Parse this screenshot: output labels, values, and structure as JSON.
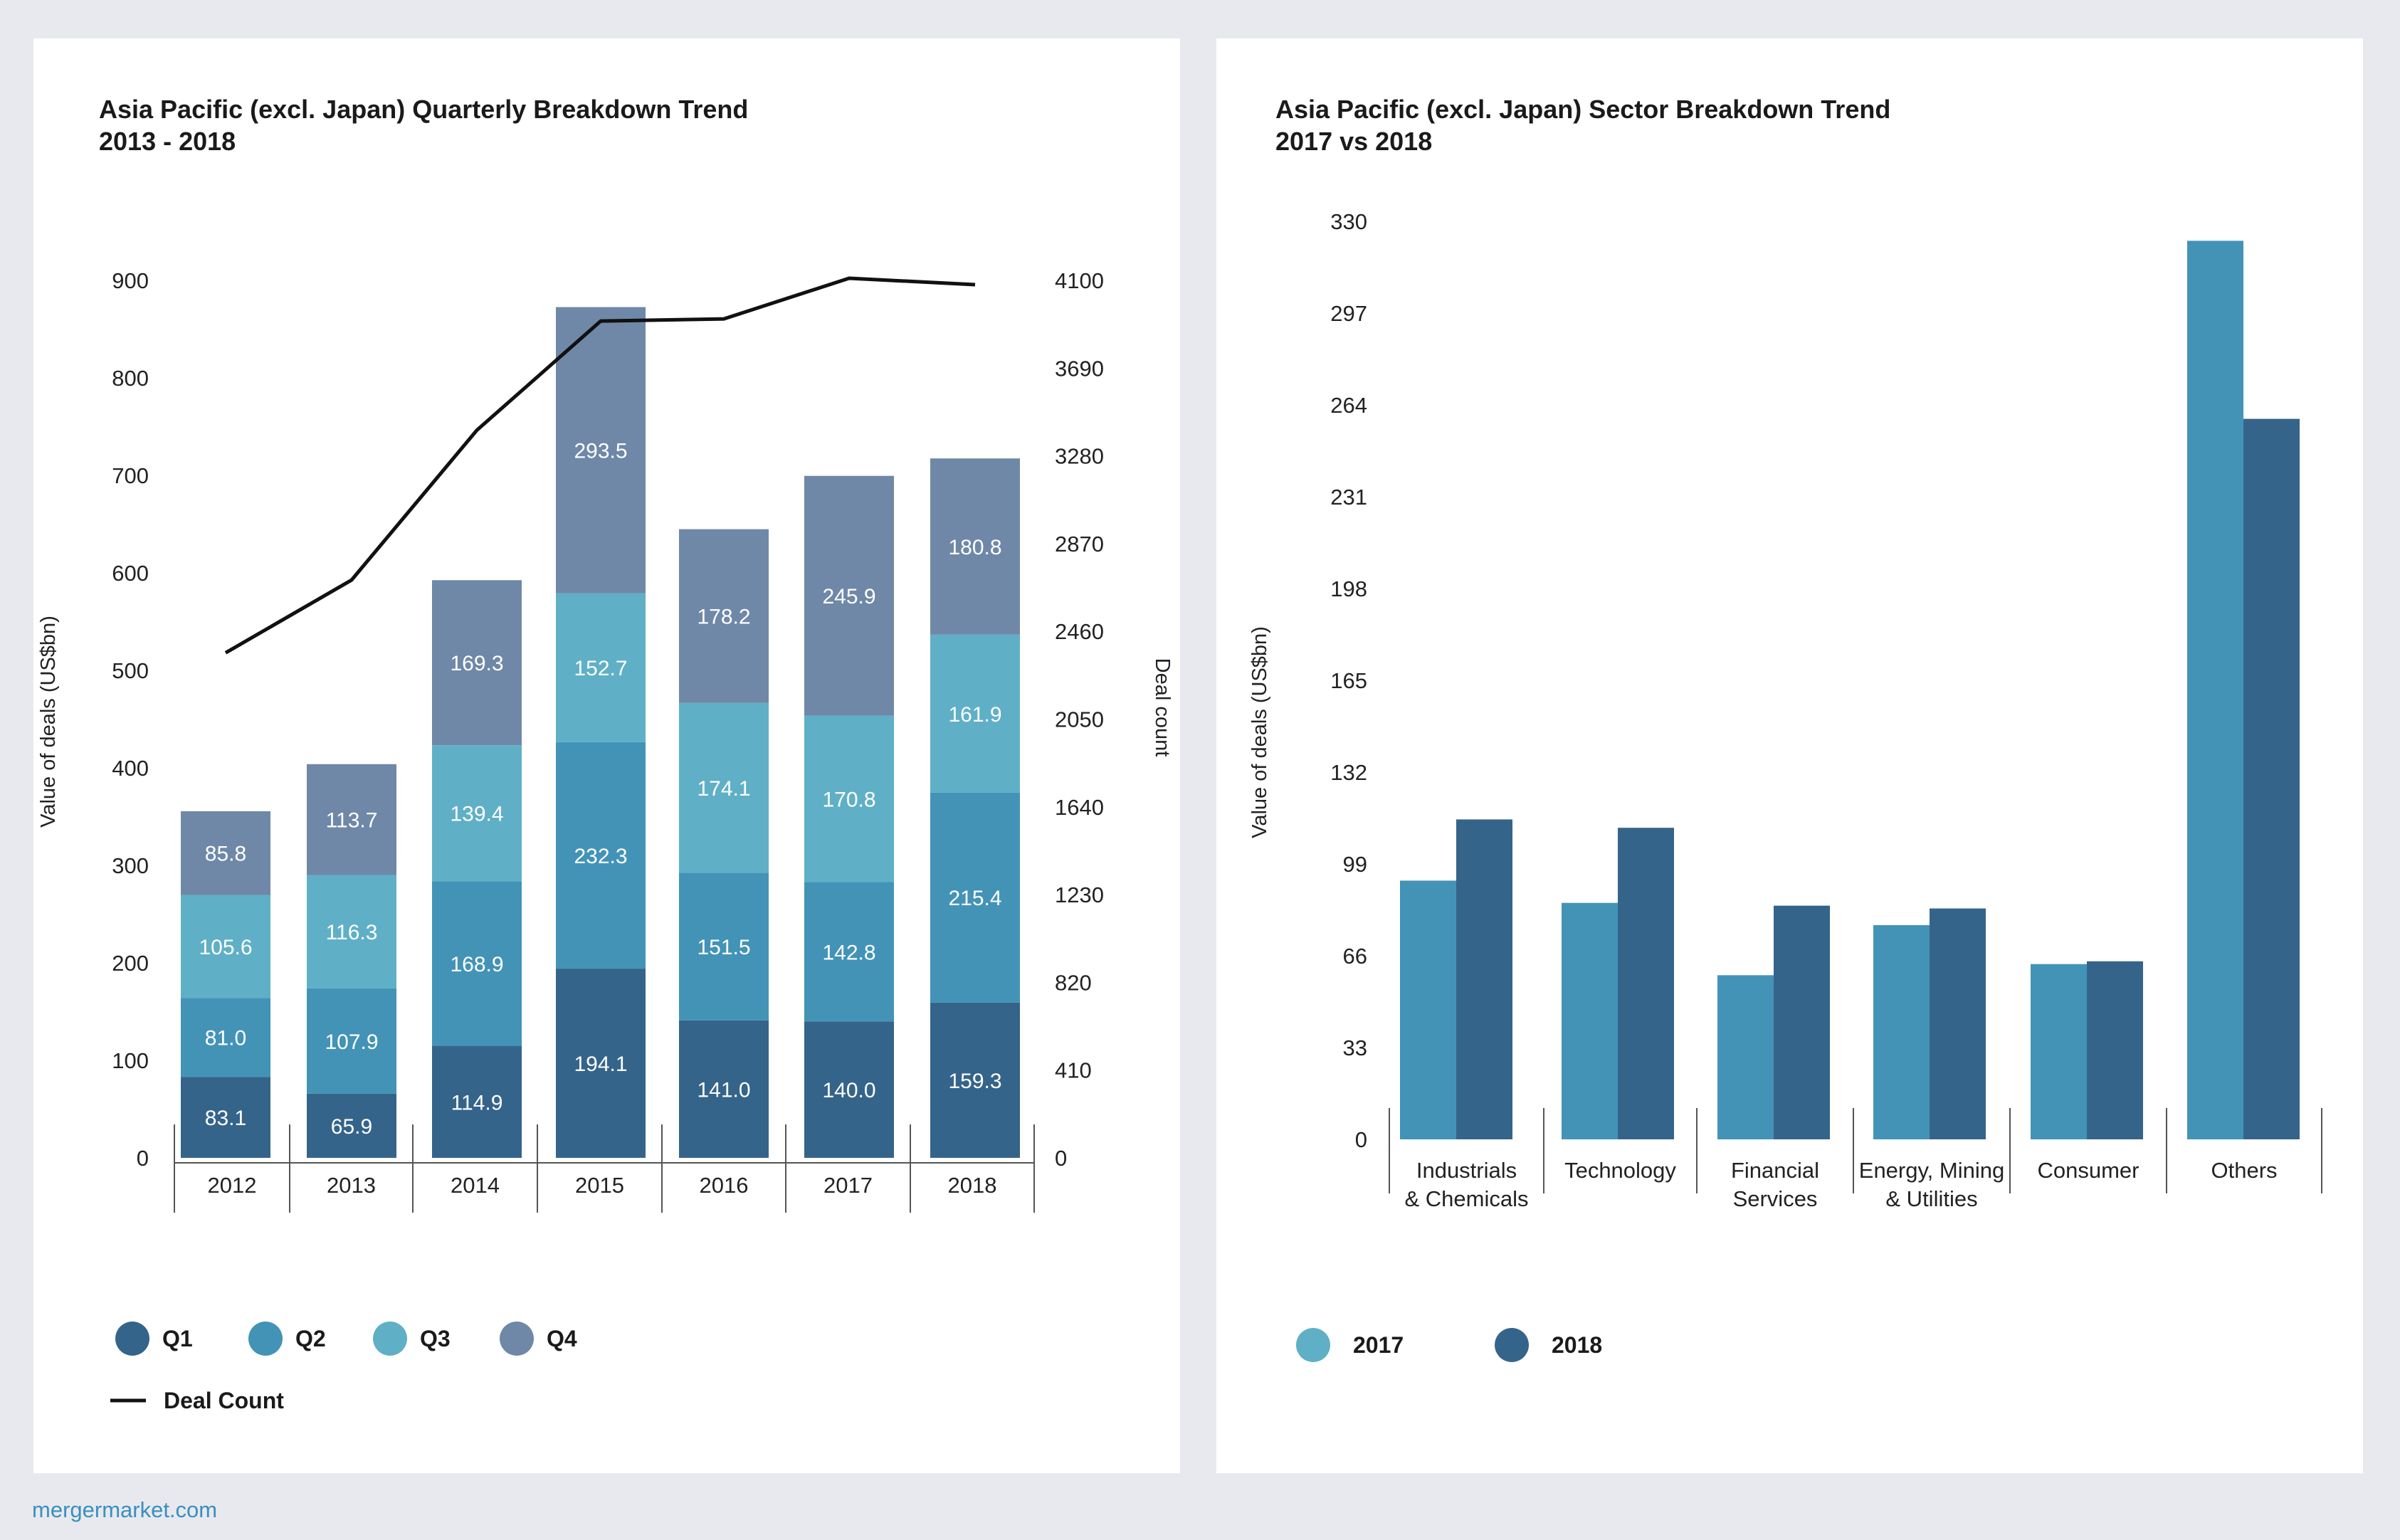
{
  "colors": {
    "q1": "#35648a",
    "q2": "#4393b7",
    "q3": "#5fb0c6",
    "q4": "#6f88a8",
    "deal_count_line": "#111111",
    "y2017": "#4393b7",
    "y2018": "#35648a",
    "legend_2017": "#5fb0c6",
    "legend_2018": "#35648a"
  },
  "footer": {
    "text": "mergermarket.com"
  },
  "chart_data": [
    {
      "type": "bar",
      "stacked": true,
      "title": "Asia Pacific (excl. Japan) Quarterly Breakdown Trend",
      "subtitle": "2013 - 2018",
      "ylabel": "Value of deals (US$bn)",
      "y2label": "Deal count",
      "ylim": [
        0,
        900
      ],
      "yticks": [
        0,
        100,
        200,
        300,
        400,
        500,
        600,
        700,
        800,
        900
      ],
      "y2lim": [
        0,
        4100
      ],
      "y2ticks": [
        0,
        410,
        820,
        1230,
        1640,
        2050,
        2460,
        2870,
        3280,
        3690,
        4100
      ],
      "categories": [
        "2012",
        "2013",
        "2014",
        "2015",
        "2016",
        "2017",
        "2018"
      ],
      "series": [
        {
          "name": "Q1",
          "values": [
            83.1,
            65.9,
            114.9,
            194.1,
            141.0,
            140.0,
            159.3
          ],
          "labels": [
            "83.1",
            "65.9",
            "114.9",
            "194.1",
            "141.0",
            "140.0",
            "159.3"
          ]
        },
        {
          "name": "Q2",
          "values": [
            81.0,
            107.9,
            168.9,
            232.3,
            151.5,
            142.8,
            215.4
          ],
          "labels": [
            "81.0",
            "107.9",
            "168.9",
            "232.3",
            "151.5",
            "142.8",
            "215.4"
          ]
        },
        {
          "name": "Q3",
          "values": [
            105.6,
            116.3,
            139.4,
            152.7,
            174.1,
            170.8,
            161.9
          ],
          "labels": [
            "105.6",
            "116.3",
            "139.4",
            "152.7",
            "174.1",
            "170.8",
            "161.9"
          ]
        },
        {
          "name": "Q4",
          "values": [
            85.8,
            113.7,
            169.3,
            293.5,
            178.2,
            245.9,
            180.8
          ],
          "labels": [
            "85.8",
            "113.7",
            "169.3",
            "293.5",
            "178.2",
            "245.9",
            "180.8"
          ]
        }
      ],
      "line_series": {
        "name": "Deal Count",
        "axis": "secondary",
        "values": [
          2360,
          2700,
          3400,
          3910,
          3920,
          4110,
          4080
        ]
      },
      "legend": {
        "position": "bottom-left",
        "items": [
          "Q1",
          "Q2",
          "Q3",
          "Q4",
          "Deal Count"
        ]
      }
    },
    {
      "type": "bar",
      "title": "Asia Pacific (excl. Japan) Sector Breakdown Trend",
      "subtitle": "2017 vs 2018",
      "ylabel": "Value of deals (US$bn)",
      "ylim": [
        0,
        330
      ],
      "yticks": [
        0,
        33,
        66,
        99,
        132,
        165,
        198,
        231,
        264,
        297,
        330
      ],
      "categories": [
        [
          "Industrials",
          "& Chemicals"
        ],
        [
          "Technology"
        ],
        [
          "Financial",
          "Services"
        ],
        [
          "Energy, Mining",
          "& Utilities"
        ],
        [
          "Consumer"
        ],
        [
          "Others"
        ]
      ],
      "series": [
        {
          "name": "2017",
          "values": [
            93,
            85,
            59,
            77,
            63,
            323
          ]
        },
        {
          "name": "2018",
          "values": [
            115,
            112,
            84,
            83,
            64,
            259
          ]
        }
      ],
      "legend": {
        "position": "bottom-left",
        "items": [
          "2017",
          "2018"
        ]
      }
    }
  ]
}
